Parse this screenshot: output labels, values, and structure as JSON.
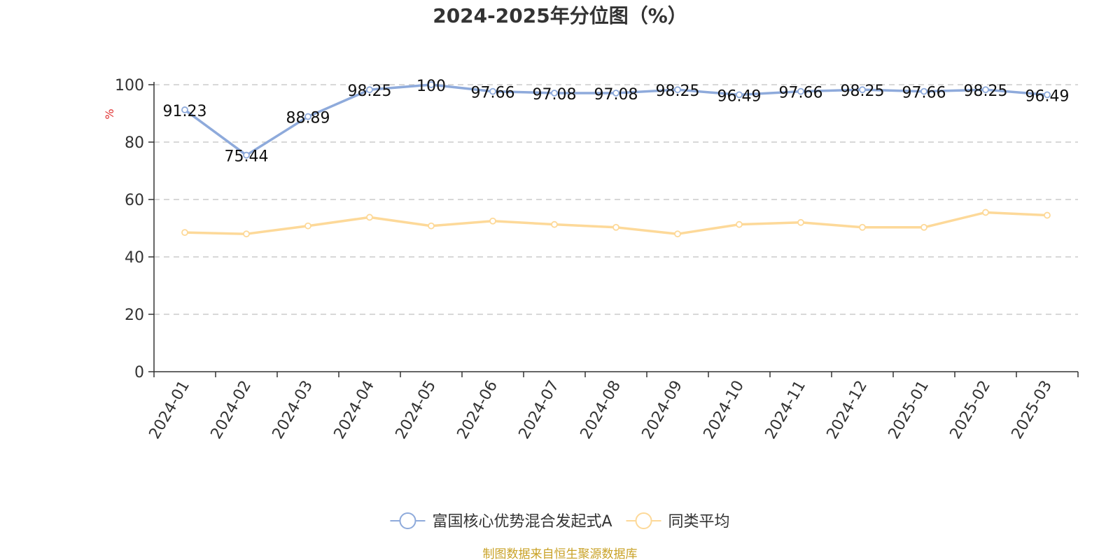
{
  "chart_data": {
    "type": "line",
    "title": "2024-2025年分位图（%）",
    "ylabel": "%",
    "ylim": [
      0,
      100
    ],
    "yticks": [
      0,
      20,
      40,
      60,
      80,
      100
    ],
    "grid": true,
    "legend_position": "bottom",
    "categories": [
      "2024-01",
      "2024-02",
      "2024-03",
      "2024-04",
      "2024-05",
      "2024-06",
      "2024-07",
      "2024-08",
      "2024-09",
      "2024-10",
      "2024-11",
      "2024-12",
      "2025-01",
      "2025-02",
      "2025-03"
    ],
    "series": [
      {
        "name": "富国核心优势混合发起式A",
        "color": "#8eaadb",
        "show_labels": true,
        "values": [
          91.23,
          75.44,
          88.89,
          98.25,
          100,
          97.66,
          97.08,
          97.08,
          98.25,
          96.49,
          97.66,
          98.25,
          97.66,
          98.25,
          96.49
        ]
      },
      {
        "name": "同类平均",
        "color": "#fdd999",
        "show_labels": false,
        "values": [
          48.5,
          48.0,
          50.8,
          53.8,
          50.8,
          52.5,
          51.3,
          50.3,
          48.0,
          51.3,
          52.0,
          50.3,
          50.3,
          55.5,
          54.5
        ]
      }
    ],
    "source": "制图数据来自恒生聚源数据库",
    "colors": {
      "source": "#c9a227",
      "unit": "#e03030",
      "axis": "#333333",
      "grid": "#cccccc"
    }
  }
}
